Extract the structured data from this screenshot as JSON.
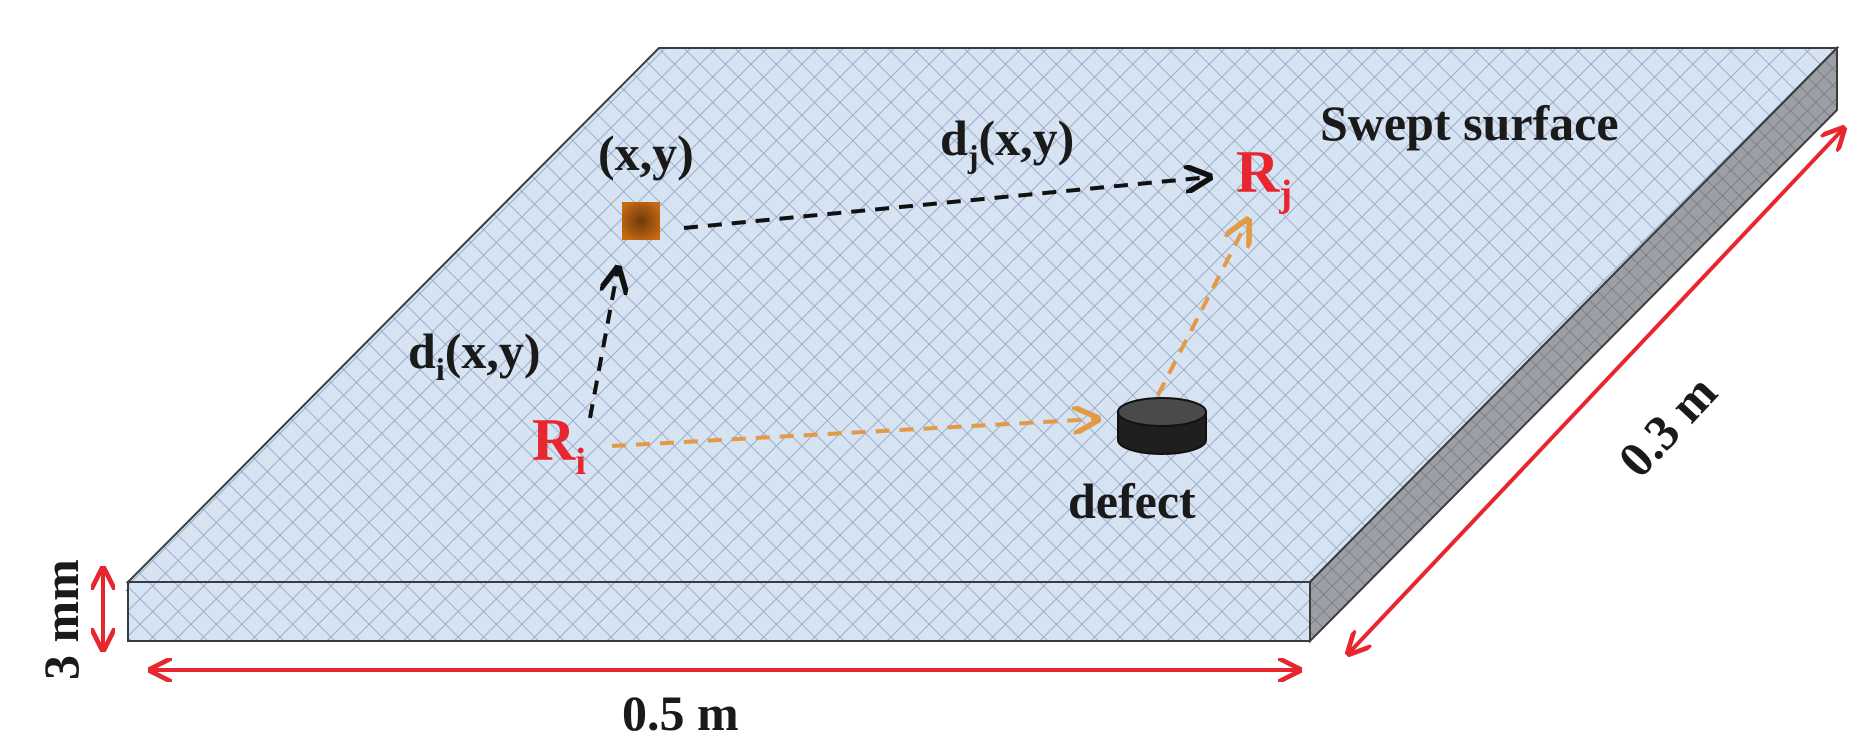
{
  "diagram": {
    "surface_label": "Swept surface",
    "point_label": "(x,y)",
    "di_label": {
      "base": "d",
      "sub": "i",
      "tail": "(x,y)"
    },
    "dj_label": {
      "base": "d",
      "sub": "j",
      "tail": "(x,y)"
    },
    "ri_label": {
      "base": "R",
      "sub": "i"
    },
    "rj_label": {
      "base": "R",
      "sub": "j"
    },
    "defect_label": "defect",
    "dim_length": "0.5 m",
    "dim_width": "0.3 m",
    "dim_thickness": "3 mm"
  },
  "colors": {
    "plate_fill": "#d6e3f3",
    "hatch": "#8f9fbb",
    "side_shade": "#9ca0a6",
    "edge": "#3c3c3c",
    "dimension": "#e8262f",
    "path_black": "#111111",
    "path_orange": "#e39a45",
    "point": "#c96a12",
    "defect": "#2b2b2b",
    "sensor_label": "#e8262f"
  }
}
